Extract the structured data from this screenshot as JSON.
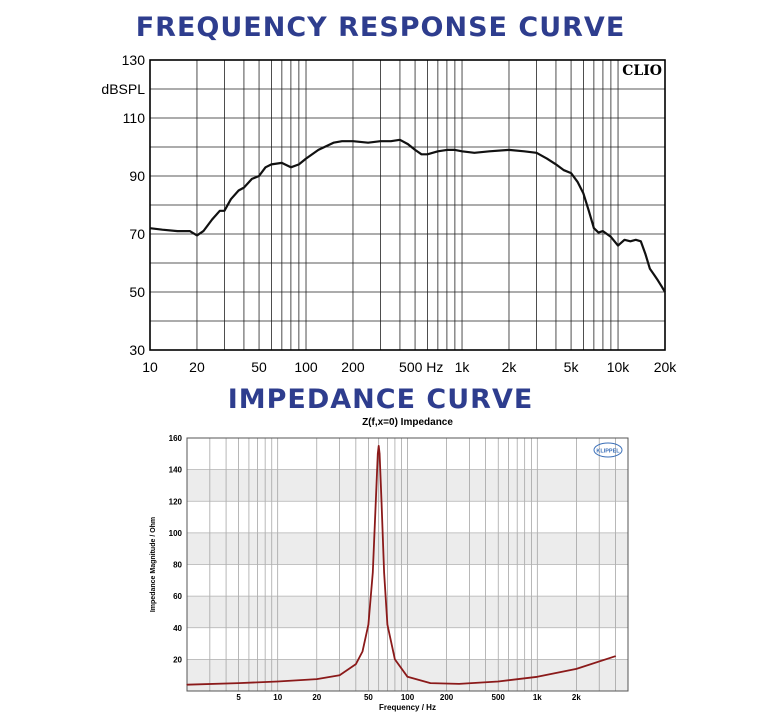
{
  "headings": {
    "frequency": "FREQUENCY RESPONSE CURVE",
    "impedance": "IMPEDANCE CURVE"
  },
  "colors": {
    "heading": "#2e3d8e",
    "fr_curve": "#111111",
    "imp_curve": "#8b1a1a"
  },
  "chart_data": [
    {
      "type": "line",
      "title": "",
      "xlabel": "",
      "ylabel": "dBSPL",
      "xscale": "log",
      "xlim": [
        10,
        20000
      ],
      "ylim": [
        30,
        130
      ],
      "grid": true,
      "watermark": "CLIO",
      "x_ticks": [
        {
          "v": 10,
          "label": "10"
        },
        {
          "v": 20,
          "label": "20"
        },
        {
          "v": 50,
          "label": "50"
        },
        {
          "v": 100,
          "label": "100"
        },
        {
          "v": 200,
          "label": "200"
        },
        {
          "v": 500,
          "label": "500 Hz"
        },
        {
          "v": 1000,
          "label": "1k"
        },
        {
          "v": 2000,
          "label": "2k"
        },
        {
          "v": 5000,
          "label": "5k"
        },
        {
          "v": 10000,
          "label": "10k"
        },
        {
          "v": 20000,
          "label": "20k"
        }
      ],
      "y_ticks": [
        {
          "v": 30,
          "label": "30"
        },
        {
          "v": 50,
          "label": "50"
        },
        {
          "v": 70,
          "label": "70"
        },
        {
          "v": 90,
          "label": "90"
        },
        {
          "v": 110,
          "label": "110"
        },
        {
          "v": 130,
          "label": "130"
        }
      ],
      "series": [
        {
          "x": [
            10,
            12,
            15,
            18,
            20,
            22,
            25,
            28,
            30,
            33,
            37,
            40,
            45,
            50,
            55,
            60,
            70,
            80,
            90,
            100,
            120,
            150,
            170,
            200,
            250,
            300,
            350,
            400,
            450,
            500,
            550,
            600,
            700,
            800,
            900,
            1000,
            1200,
            1500,
            2000,
            2500,
            3000,
            3500,
            4000,
            4500,
            5000,
            5500,
            6000,
            6500,
            7000,
            7500,
            8000,
            9000,
            10000,
            11000,
            12000,
            13000,
            14000,
            15000,
            16000,
            17000,
            18000,
            19000,
            20000
          ],
          "y": [
            72,
            71.5,
            71,
            71,
            69.5,
            71,
            75,
            78,
            78,
            82,
            85,
            86,
            89,
            90,
            93,
            94,
            94.5,
            93,
            94,
            96,
            99,
            101.5,
            102,
            102,
            101.5,
            102,
            102,
            102.5,
            101,
            99,
            97.5,
            97.5,
            98.5,
            99,
            99,
            98.5,
            98,
            98.5,
            99,
            98.5,
            98,
            96,
            94,
            92,
            91,
            88,
            84,
            78,
            72,
            70.5,
            71,
            69,
            66,
            68,
            67.5,
            68,
            67.5,
            63,
            58,
            56,
            54,
            52,
            50
          ]
        }
      ]
    },
    {
      "type": "line",
      "title": "Z(f,x=0) Impedance",
      "xlabel": "Frequency / Hz",
      "ylabel": "Impedance Magnitude / Ohm",
      "xscale": "log",
      "xlim": [
        2,
        5000
      ],
      "ylim": [
        0,
        160
      ],
      "grid": true,
      "logo": "KLIPPEL",
      "x_ticks": [
        {
          "v": 5,
          "label": "5"
        },
        {
          "v": 10,
          "label": "10"
        },
        {
          "v": 20,
          "label": "20"
        },
        {
          "v": 50,
          "label": "50"
        },
        {
          "v": 100,
          "label": "100"
        },
        {
          "v": 200,
          "label": "200"
        },
        {
          "v": 500,
          "label": "500"
        },
        {
          "v": 1000,
          "label": "1k"
        },
        {
          "v": 2000,
          "label": "2k"
        }
      ],
      "y_ticks": [
        {
          "v": 20,
          "label": "20"
        },
        {
          "v": 40,
          "label": "40"
        },
        {
          "v": 60,
          "label": "60"
        },
        {
          "v": 80,
          "label": "80"
        },
        {
          "v": 100,
          "label": "100"
        },
        {
          "v": 120,
          "label": "120"
        },
        {
          "v": 140,
          "label": "140"
        },
        {
          "v": 160,
          "label": "160"
        }
      ],
      "series": [
        {
          "x": [
            2,
            5,
            10,
            20,
            30,
            40,
            45,
            50,
            54,
            57,
            59,
            60,
            61,
            63,
            66,
            70,
            80,
            100,
            150,
            250,
            500,
            1000,
            2000,
            4000
          ],
          "y": [
            4,
            5,
            6,
            7.5,
            10,
            17,
            25,
            42,
            75,
            120,
            150,
            155,
            150,
            120,
            75,
            42,
            20,
            9,
            5,
            4.5,
            6,
            9,
            14,
            22
          ]
        }
      ]
    }
  ]
}
